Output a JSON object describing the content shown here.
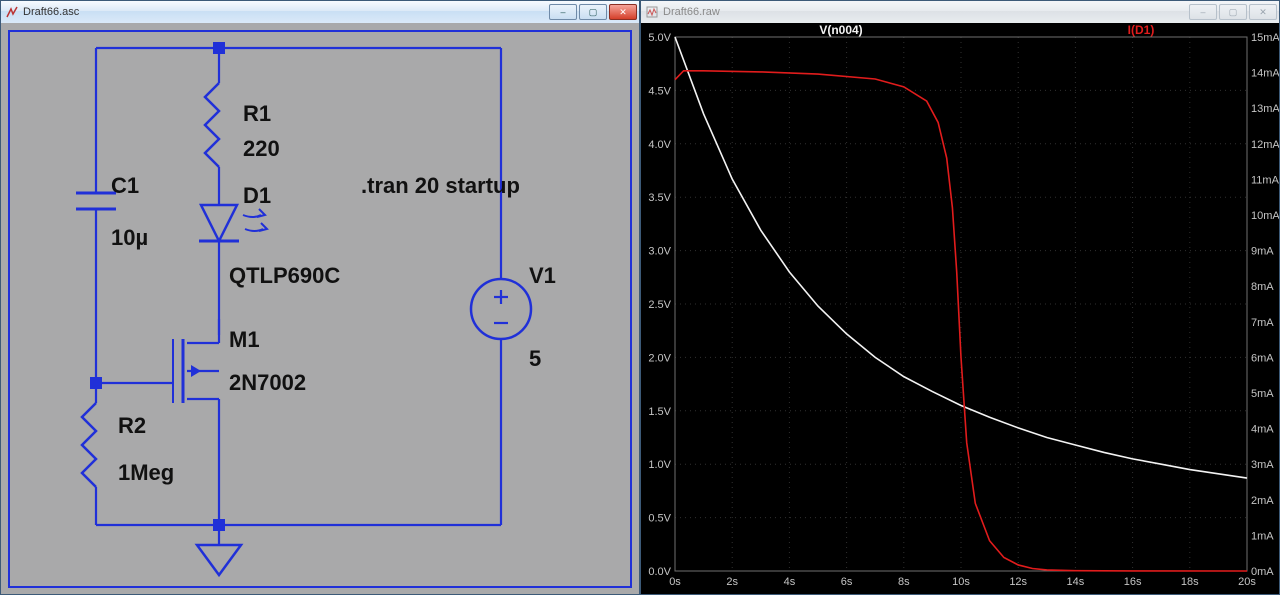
{
  "windows": {
    "schematic": {
      "title": "Draft66.asc",
      "active": true,
      "buttons": {
        "min": "–",
        "max": "▢",
        "close": "✕"
      }
    },
    "waveform": {
      "title": "Draft66.raw",
      "active": false,
      "buttons": {
        "min": "–",
        "max": "▢",
        "close": "✕"
      }
    }
  },
  "schematic": {
    "background_color": "#a9a9aa",
    "wire_color": "#2030d8",
    "node_fill": "#2030d8",
    "text_color": "#111111",
    "label_fontsize": 22,
    "components": {
      "C1": {
        "name": "C1",
        "value": "10µ"
      },
      "R1": {
        "name": "R1",
        "value": "220"
      },
      "D1": {
        "name": "D1",
        "value": "QTLP690C"
      },
      "M1": {
        "name": "M1",
        "value": "2N7002"
      },
      "R2": {
        "name": "R2",
        "value": "1Meg"
      },
      "V1": {
        "name": "V1",
        "value": "5"
      }
    },
    "directive": ".tran 20 startup"
  },
  "plot": {
    "background_color": "#000000",
    "grid_color": "#303030",
    "axis_text_color": "#c5c5c5",
    "traces": [
      {
        "label": "V(n004)",
        "color": "#f3f3f3"
      },
      {
        "label": "I(D1)",
        "color": "#e11c1c"
      }
    ],
    "x": {
      "min": 0,
      "max": 20,
      "step": 2,
      "unit": "s"
    },
    "y_left": {
      "min": 0,
      "max": 5,
      "step": 0.5,
      "unit": "V",
      "color": "#c5c5c5"
    },
    "y_right": {
      "min": 0,
      "max": 15,
      "step": 1,
      "unit": "mA",
      "color": "#c5c5c5"
    },
    "series": {
      "Vn004": [
        [
          0,
          5.0
        ],
        [
          1,
          4.28
        ],
        [
          2,
          3.67
        ],
        [
          3,
          3.19
        ],
        [
          4,
          2.8
        ],
        [
          5,
          2.48
        ],
        [
          6,
          2.22
        ],
        [
          7,
          2.0
        ],
        [
          8,
          1.82
        ],
        [
          9,
          1.68
        ],
        [
          10,
          1.55
        ],
        [
          11,
          1.44
        ],
        [
          12,
          1.34
        ],
        [
          13,
          1.25
        ],
        [
          14,
          1.18
        ],
        [
          15,
          1.11
        ],
        [
          16,
          1.05
        ],
        [
          17,
          1.0
        ],
        [
          18,
          0.95
        ],
        [
          19,
          0.91
        ],
        [
          20,
          0.87
        ]
      ],
      "ID1": [
        [
          0,
          13.8
        ],
        [
          0.3,
          14.05
        ],
        [
          1,
          14.05
        ],
        [
          3,
          14.02
        ],
        [
          5,
          13.96
        ],
        [
          7,
          13.82
        ],
        [
          8,
          13.6
        ],
        [
          8.8,
          13.2
        ],
        [
          9.2,
          12.6
        ],
        [
          9.5,
          11.6
        ],
        [
          9.7,
          10.2
        ],
        [
          9.85,
          8.4
        ],
        [
          10,
          6.0
        ],
        [
          10.2,
          3.6
        ],
        [
          10.5,
          1.9
        ],
        [
          11,
          0.85
        ],
        [
          11.5,
          0.38
        ],
        [
          12,
          0.17
        ],
        [
          12.5,
          0.07
        ],
        [
          13,
          0.03
        ],
        [
          14,
          0.01
        ],
        [
          16,
          0.002
        ],
        [
          20,
          0.0
        ]
      ]
    }
  }
}
